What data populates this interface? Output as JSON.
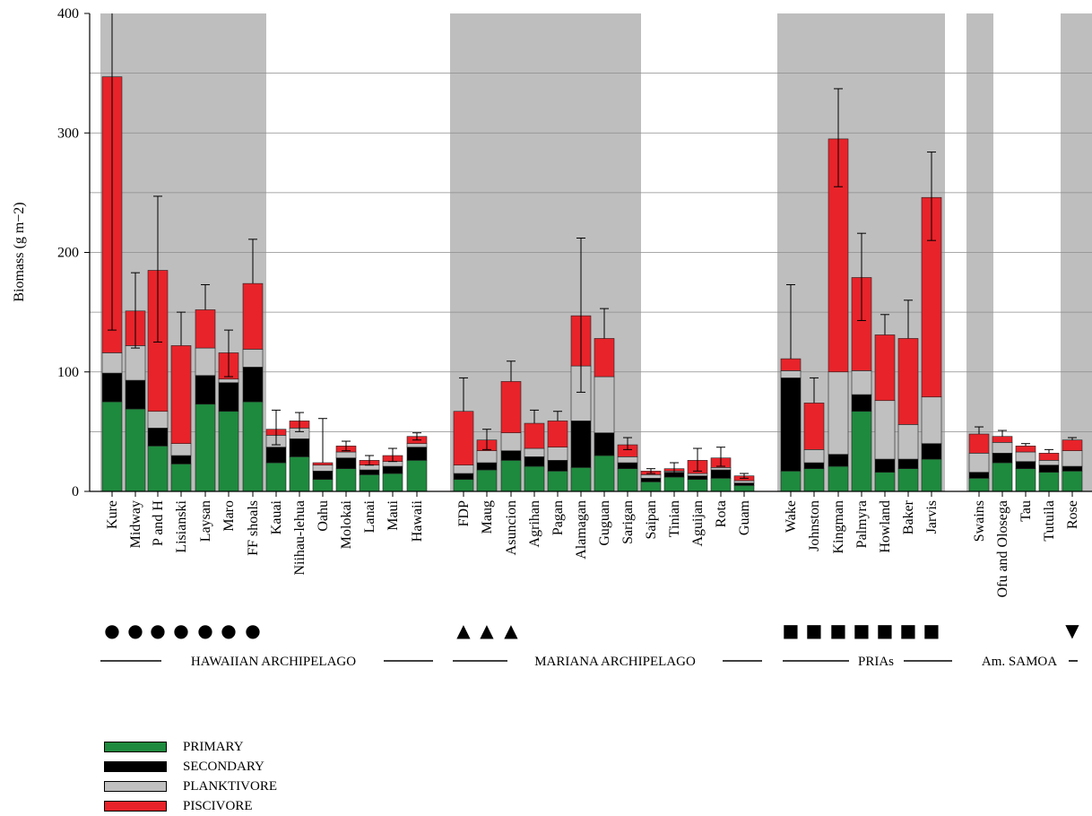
{
  "chart_data": {
    "type": "bar",
    "stacked": true,
    "ylabel": "Biomass (g m−2)",
    "ylim": [
      0,
      400
    ],
    "yticks": [
      0,
      100,
      200,
      300,
      400
    ],
    "grid": true,
    "legend_position": "bottom-left",
    "categories": [
      "Kure",
      "Midway",
      "P and H",
      "Lisianski",
      "Laysan",
      "Maro",
      "FF shoals",
      "Kauai",
      "Niihau-lehua",
      "Oahu",
      "Molokai",
      "Lanai",
      "Maui",
      "Hawaii",
      "FDP",
      "Maug",
      "Asuncion",
      "Agrihan",
      "Pagan",
      "Alamagan",
      "Guguan",
      "Sarigan",
      "Saipan",
      "Tinian",
      "Aguijan",
      "Rota",
      "Guam",
      "Wake",
      "Johnston",
      "Kingman",
      "Palmyra",
      "Howland",
      "Baker",
      "Jarvis",
      "Swains",
      "Ofu and Olosega",
      "Tau",
      "Tutuila",
      "Rose"
    ],
    "series": [
      {
        "name": "PRIMARY",
        "color": "#1e8a3e",
        "values": [
          75,
          69,
          38,
          23,
          73,
          67,
          75,
          24,
          29,
          10,
          19,
          14,
          15,
          26,
          10,
          18,
          26,
          21,
          17,
          20,
          30,
          19,
          8,
          12,
          10,
          11,
          5,
          17,
          19,
          21,
          67,
          16,
          19,
          27,
          11,
          24,
          19,
          16,
          17
        ]
      },
      {
        "name": "SECONDARY",
        "color": "#000000",
        "values": [
          24,
          24,
          15,
          7,
          24,
          24,
          29,
          13,
          15,
          7,
          9,
          4,
          6,
          11,
          5,
          6,
          8,
          8,
          9,
          39,
          19,
          5,
          3,
          4,
          3,
          7,
          2,
          78,
          5,
          10,
          14,
          11,
          8,
          13,
          5,
          8,
          6,
          6,
          4
        ]
      },
      {
        "name": "PLANKTIVORE",
        "color": "#c0c0c0",
        "values": [
          17,
          29,
          14,
          10,
          23,
          3,
          15,
          10,
          9,
          5,
          5,
          4,
          4,
          3,
          7,
          10,
          15,
          7,
          11,
          46,
          47,
          5,
          3,
          1,
          2,
          2,
          2,
          6,
          11,
          69,
          20,
          49,
          29,
          39,
          16,
          9,
          8,
          4,
          13
        ]
      },
      {
        "name": "PISCIVORE",
        "color": "#e8232a",
        "values": [
          231,
          29,
          118,
          82,
          32,
          22,
          55,
          5,
          6,
          2,
          5,
          4,
          5,
          6,
          45,
          9,
          43,
          21,
          22,
          42,
          32,
          10,
          3,
          2,
          11,
          8,
          4,
          10,
          39,
          195,
          78,
          55,
          72,
          167,
          16,
          5,
          5,
          6,
          9
        ]
      }
    ],
    "error_bar_upper": [
      400,
      183,
      247,
      150,
      173,
      135,
      211,
      68,
      66,
      61,
      42,
      30,
      36,
      49,
      95,
      52,
      109,
      68,
      67,
      212,
      153,
      45,
      19,
      24,
      36,
      37,
      15,
      173,
      95,
      337,
      216,
      148,
      160,
      284,
      54,
      51,
      40,
      35,
      45
    ],
    "error_bar_lower": [
      135,
      120,
      125,
      null,
      null,
      96,
      null,
      39,
      50,
      null,
      34,
      22,
      25,
      43,
      null,
      35,
      null,
      null,
      null,
      83,
      null,
      35,
      15,
      14,
      17,
      21,
      11,
      null,
      null,
      255,
      143,
      null,
      null,
      210,
      null,
      null,
      null,
      null,
      null
    ],
    "regions": [
      {
        "label": "HAWAIIAN ARCHIPELAGO",
        "symbol": "●",
        "symbol_count": 7
      },
      {
        "label": "MARIANA ARCHIPELAGO",
        "symbol": "▲",
        "symbol_count": 3
      },
      {
        "label": "PRIAs",
        "symbol": "■",
        "symbol_count": 7
      },
      {
        "label": "Am. SAMOA",
        "symbol": "▼",
        "symbol_count": 1
      }
    ],
    "shaded_background_color": "#bebebe"
  }
}
